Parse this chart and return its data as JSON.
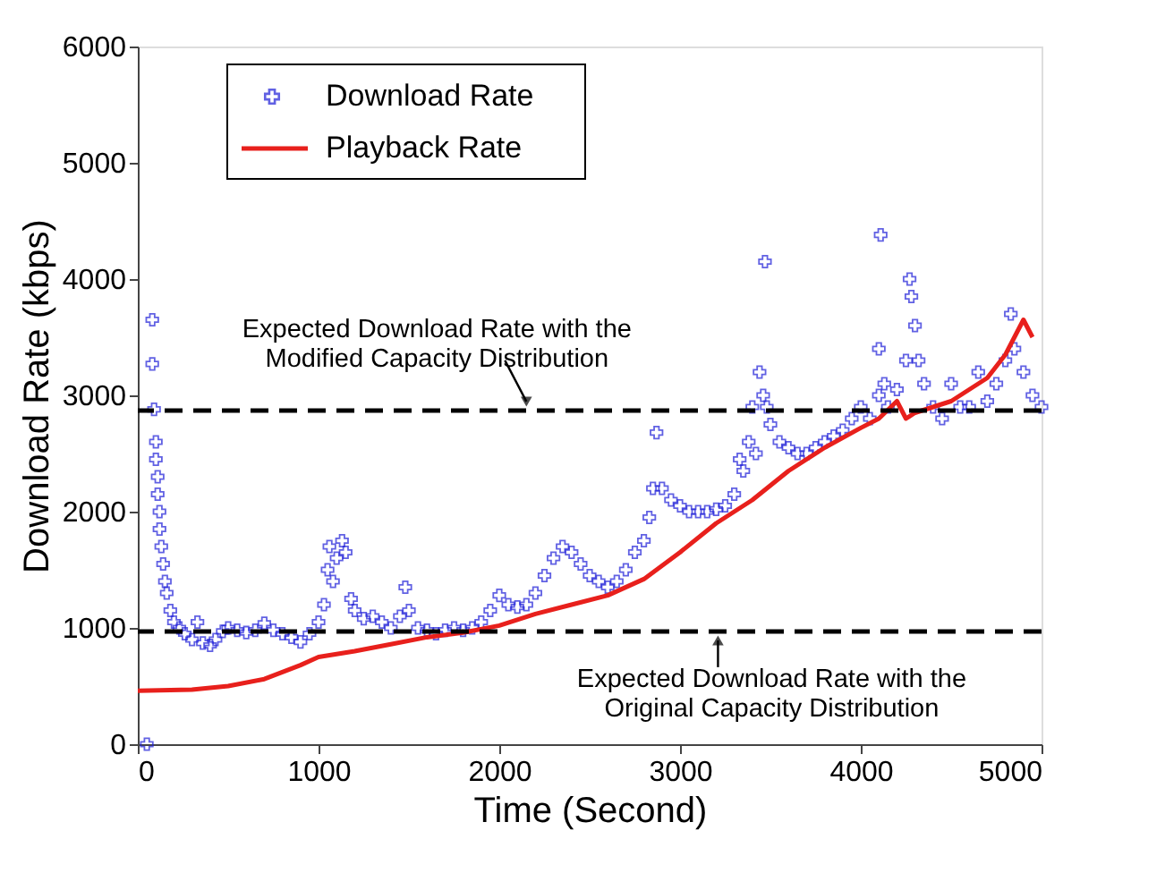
{
  "chart_data": {
    "type": "scatter",
    "xlabel": "Time (Second)",
    "ylabel": "Download Rate (kbps)",
    "xlim": [
      0,
      5000
    ],
    "ylim": [
      0,
      6000
    ],
    "xticks": [
      0,
      1000,
      2000,
      3000,
      4000,
      5000
    ],
    "yticks": [
      0,
      1000,
      2000,
      3000,
      4000,
      5000,
      6000
    ],
    "grid": false,
    "legend": "top left",
    "series": [
      {
        "name": "Download Rate",
        "marker": "cross",
        "color": "#1f1fd8",
        "x": [
          50,
          80,
          80,
          90,
          100,
          100,
          110,
          110,
          120,
          120,
          130,
          140,
          150,
          160,
          180,
          200,
          230,
          260,
          300,
          330,
          360,
          400,
          430,
          470,
          500,
          550,
          600,
          650,
          700,
          750,
          800,
          850,
          900,
          950,
          1000,
          1030,
          1050,
          1060,
          1080,
          1100,
          1130,
          1150,
          1180,
          1200,
          1250,
          1300,
          1350,
          1400,
          1450,
          1480,
          1500,
          1550,
          1600,
          1650,
          1700,
          1750,
          1800,
          1850,
          1900,
          1950,
          2000,
          2050,
          2100,
          2150,
          2200,
          2250,
          2300,
          2350,
          2400,
          2450,
          2500,
          2550,
          2600,
          2650,
          2700,
          2750,
          2800,
          2830,
          2850,
          2870,
          2900,
          2950,
          3000,
          3050,
          3100,
          3150,
          3200,
          3250,
          3300,
          3330,
          3350,
          3380,
          3400,
          3420,
          3440,
          3460,
          3470,
          3480,
          3500,
          3550,
          3600,
          3650,
          3700,
          3750,
          3800,
          3850,
          3900,
          3950,
          4000,
          4050,
          4100,
          4100,
          4110,
          4130,
          4150,
          4200,
          4250,
          4270,
          4280,
          4300,
          4320,
          4350,
          4400,
          4450,
          4500,
          4550,
          4600,
          4650,
          4700,
          4750,
          4800,
          4830,
          4850,
          4900,
          4950,
          5000
        ],
        "values": [
          0,
          3650,
          3270,
          2880,
          2600,
          2450,
          2300,
          2150,
          2000,
          1850,
          1700,
          1550,
          1400,
          1300,
          1150,
          1050,
          1000,
          950,
          900,
          1050,
          870,
          850,
          900,
          970,
          1000,
          980,
          960,
          980,
          1040,
          980,
          950,
          920,
          880,
          950,
          1050,
          1200,
          1500,
          1700,
          1400,
          1600,
          1750,
          1650,
          1250,
          1150,
          1080,
          1100,
          1050,
          1000,
          1100,
          1350,
          1150,
          1000,
          980,
          950,
          980,
          1000,
          980,
          1000,
          1050,
          1150,
          1280,
          1200,
          1180,
          1200,
          1300,
          1450,
          1600,
          1700,
          1650,
          1550,
          1450,
          1400,
          1350,
          1400,
          1500,
          1650,
          1750,
          1950,
          2200,
          2680,
          2200,
          2100,
          2050,
          2000,
          2000,
          2000,
          2020,
          2050,
          2150,
          2450,
          2350,
          2600,
          2900,
          2500,
          3200,
          3000,
          4150,
          2900,
          2750,
          2600,
          2550,
          2500,
          2500,
          2550,
          2600,
          2650,
          2700,
          2800,
          2900,
          2800,
          3000,
          3400,
          4380,
          3100,
          2900,
          3050,
          3300,
          4000,
          3850,
          3600,
          3300,
          3100,
          2900,
          2800,
          3100,
          2900,
          2900,
          3200,
          2950,
          3100,
          3300,
          3700,
          3400,
          3200,
          3000,
          2900
        ]
      },
      {
        "name": "Playback Rate",
        "type": "line",
        "line_style": "solid",
        "color": "#e8201c",
        "x": [
          0,
          300,
          500,
          700,
          900,
          1000,
          1200,
          1400,
          1600,
          1800,
          2000,
          2200,
          2400,
          2600,
          2800,
          3000,
          3200,
          3400,
          3600,
          3800,
          4000,
          4100,
          4200,
          4250,
          4300,
          4400,
          4500,
          4600,
          4700,
          4800,
          4900,
          4950
        ],
        "values": [
          460,
          470,
          500,
          560,
          680,
          750,
          800,
          860,
          920,
          960,
          1020,
          1120,
          1200,
          1280,
          1420,
          1650,
          1900,
          2100,
          2350,
          2550,
          2720,
          2800,
          2950,
          2800,
          2850,
          2900,
          2950,
          3050,
          3150,
          3350,
          3650,
          3500
        ]
      }
    ],
    "ref_lines": [
      {
        "axis": "y",
        "value": 2870,
        "color": "#000000",
        "line_style": "dashed"
      },
      {
        "axis": "y",
        "value": 970,
        "color": "#000000",
        "line_style": "dashed"
      }
    ],
    "annotations": [
      {
        "text": "Expected Download Rate with the\nModified Capacity Distribution",
        "x": 2150,
        "y": 2870
      },
      {
        "text": "Expected Download Rate with the\nOriginal Capacity Distribution",
        "x": 3210,
        "y": 970
      }
    ]
  }
}
